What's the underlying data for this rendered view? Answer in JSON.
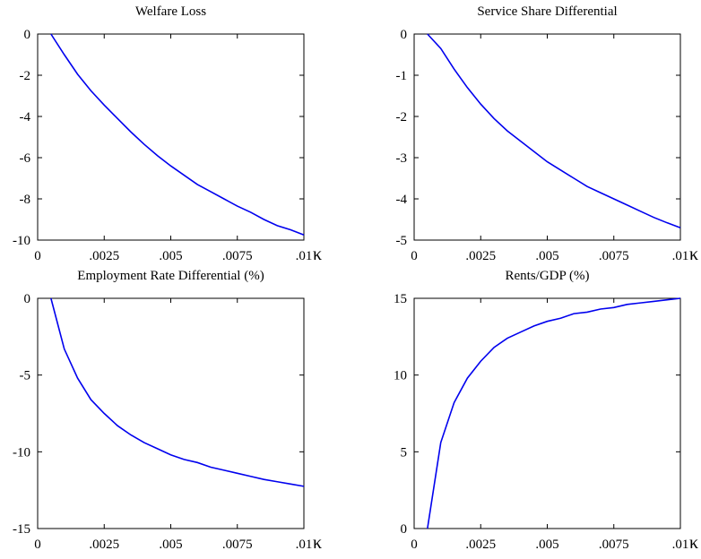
{
  "chart_data": [
    {
      "type": "line",
      "title": "Welfare Loss",
      "xlabel": "κ",
      "ylabel": "",
      "xlim": [
        0,
        0.01
      ],
      "ylim": [
        -10,
        0
      ],
      "x_ticks": [
        0,
        0.0025,
        0.005,
        0.0075,
        0.01
      ],
      "x_tick_labels": [
        "0",
        ".0025",
        ".005",
        ".0075",
        ".01"
      ],
      "y_ticks": [
        0,
        -2,
        -4,
        -6,
        -8,
        -10
      ],
      "y_tick_labels": [
        "0",
        "-2",
        "-4",
        "-6",
        "-8",
        "-10"
      ],
      "grid": false,
      "color": "#0000ee",
      "series": [
        {
          "x": [
            0.0005,
            0.001,
            0.0015,
            0.002,
            0.0025,
            0.003,
            0.0035,
            0.004,
            0.0045,
            0.005,
            0.0055,
            0.006,
            0.0065,
            0.007,
            0.0075,
            0.008,
            0.0085,
            0.009,
            0.0095,
            0.01
          ],
          "y": [
            0,
            -1.0,
            -1.95,
            -2.75,
            -3.45,
            -4.1,
            -4.75,
            -5.35,
            -5.9,
            -6.4,
            -6.85,
            -7.3,
            -7.65,
            -8.0,
            -8.35,
            -8.65,
            -9.0,
            -9.3,
            -9.5,
            -9.75
          ]
        }
      ]
    },
    {
      "type": "line",
      "title": "Service Share Differential",
      "xlabel": "κ",
      "ylabel": "",
      "xlim": [
        0,
        0.01
      ],
      "ylim": [
        -5,
        0
      ],
      "x_ticks": [
        0,
        0.0025,
        0.005,
        0.0075,
        0.01
      ],
      "x_tick_labels": [
        "0",
        ".0025",
        ".005",
        ".0075",
        ".01"
      ],
      "y_ticks": [
        0,
        -1,
        -2,
        -3,
        -4,
        -5
      ],
      "y_tick_labels": [
        "0",
        "-1",
        "-2",
        "-3",
        "-4",
        "-5"
      ],
      "grid": false,
      "color": "#0000ee",
      "series": [
        {
          "x": [
            0.0005,
            0.001,
            0.0015,
            0.002,
            0.0025,
            0.003,
            0.0035,
            0.004,
            0.0045,
            0.005,
            0.0055,
            0.006,
            0.0065,
            0.007,
            0.0075,
            0.008,
            0.0085,
            0.009,
            0.0095,
            0.01
          ],
          "y": [
            0,
            -0.35,
            -0.85,
            -1.3,
            -1.7,
            -2.05,
            -2.35,
            -2.6,
            -2.85,
            -3.1,
            -3.3,
            -3.5,
            -3.7,
            -3.85,
            -4.0,
            -4.15,
            -4.3,
            -4.45,
            -4.58,
            -4.7
          ]
        }
      ]
    },
    {
      "type": "line",
      "title": "Employment Rate Differential (%)",
      "xlabel": "κ",
      "ylabel": "",
      "xlim": [
        0,
        0.01
      ],
      "ylim": [
        -15,
        0
      ],
      "x_ticks": [
        0,
        0.0025,
        0.005,
        0.0075,
        0.01
      ],
      "x_tick_labels": [
        "0",
        ".0025",
        ".005",
        ".0075",
        ".01"
      ],
      "y_ticks": [
        0,
        -5,
        -10,
        -15
      ],
      "y_tick_labels": [
        "0",
        "-5",
        "-10",
        "-15"
      ],
      "grid": false,
      "color": "#0000ee",
      "series": [
        {
          "x": [
            0.0005,
            0.001,
            0.0015,
            0.002,
            0.0025,
            0.003,
            0.0035,
            0.004,
            0.0045,
            0.005,
            0.0055,
            0.006,
            0.0065,
            0.007,
            0.0075,
            0.008,
            0.0085,
            0.009,
            0.0095,
            0.01
          ],
          "y": [
            0,
            -3.3,
            -5.2,
            -6.6,
            -7.5,
            -8.3,
            -8.9,
            -9.4,
            -9.8,
            -10.2,
            -10.5,
            -10.7,
            -11.0,
            -11.2,
            -11.4,
            -11.6,
            -11.8,
            -11.95,
            -12.1,
            -12.25
          ]
        }
      ]
    },
    {
      "type": "line",
      "title": "Rents/GDP (%)",
      "xlabel": "κ",
      "ylabel": "",
      "xlim": [
        0,
        0.01
      ],
      "ylim": [
        0,
        15
      ],
      "x_ticks": [
        0,
        0.0025,
        0.005,
        0.0075,
        0.01
      ],
      "x_tick_labels": [
        "0",
        ".0025",
        ".005",
        ".0075",
        ".01"
      ],
      "y_ticks": [
        0,
        5,
        10,
        15
      ],
      "y_tick_labels": [
        "0",
        "5",
        "10",
        "15"
      ],
      "grid": false,
      "color": "#0000ee",
      "series": [
        {
          "x": [
            0.0005,
            0.001,
            0.0015,
            0.002,
            0.0025,
            0.003,
            0.0035,
            0.004,
            0.0045,
            0.005,
            0.0055,
            0.006,
            0.0065,
            0.007,
            0.0075,
            0.008,
            0.0085,
            0.009,
            0.0095,
            0.01
          ],
          "y": [
            0,
            5.6,
            8.2,
            9.8,
            10.9,
            11.8,
            12.4,
            12.8,
            13.2,
            13.5,
            13.7,
            14.0,
            14.1,
            14.3,
            14.4,
            14.6,
            14.7,
            14.8,
            14.9,
            15.0
          ]
        }
      ]
    }
  ]
}
